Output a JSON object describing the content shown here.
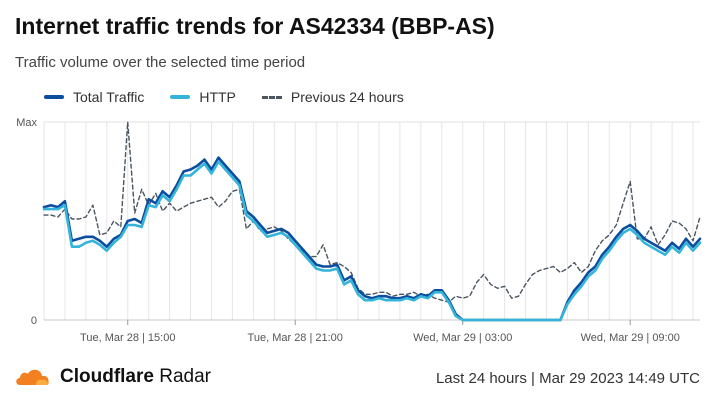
{
  "header": {
    "title": "Internet traffic trends for AS42334 (BBP-AS)",
    "subtitle": "Traffic volume over the selected time period"
  },
  "legend": {
    "items": [
      {
        "label": "Total Traffic",
        "color": "#0b4d9e",
        "style": "solid"
      },
      {
        "label": "HTTP",
        "color": "#34b4d8",
        "style": "solid"
      },
      {
        "label": "Previous 24 hours",
        "color": "#4a5560",
        "style": "dashed"
      }
    ]
  },
  "footer": {
    "brand_name": "Cloudflare",
    "brand_product": "Radar",
    "timestamp": "Last 24 hours | Mar 29 2023 14:49 UTC",
    "logo_icon": "cloudflare-cloud-icon",
    "logo_color": "#f38020"
  },
  "chart_data": {
    "type": "line",
    "title": "Internet traffic trends for AS42334 (BBP-AS)",
    "subtitle": "Traffic volume over the selected time period",
    "y_tick_labels": [
      "0",
      "Max"
    ],
    "ylim": [
      0,
      1
    ],
    "x_tick_labels": [
      "Tue, Mar 28 | 15:00",
      "Tue, Mar 28 | 21:00",
      "Wed, Mar 29 | 03:00",
      "Wed, Mar 29 | 09:00"
    ],
    "x_tick_index": [
      12,
      36,
      60,
      84
    ],
    "x_count": 95,
    "grid": true,
    "legend_position": "top-left",
    "series": [
      {
        "name": "Total Traffic",
        "color": "#0b4d9e",
        "style": "solid",
        "values": [
          0.57,
          0.58,
          0.57,
          0.6,
          0.4,
          0.41,
          0.42,
          0.42,
          0.4,
          0.37,
          0.41,
          0.43,
          0.5,
          0.51,
          0.49,
          0.61,
          0.59,
          0.65,
          0.62,
          0.68,
          0.75,
          0.76,
          0.78,
          0.81,
          0.76,
          0.82,
          0.78,
          0.74,
          0.7,
          0.55,
          0.52,
          0.48,
          0.44,
          0.45,
          0.46,
          0.44,
          0.4,
          0.36,
          0.32,
          0.28,
          0.27,
          0.27,
          0.28,
          0.2,
          0.22,
          0.15,
          0.12,
          0.11,
          0.12,
          0.12,
          0.11,
          0.11,
          0.12,
          0.11,
          0.13,
          0.12,
          0.15,
          0.15,
          0.1,
          0.03,
          0.0,
          0.0,
          0.0,
          0.0,
          0.0,
          0.0,
          0.0,
          0.0,
          0.0,
          0.0,
          0.0,
          0.0,
          0.0,
          0.0,
          0.0,
          0.09,
          0.15,
          0.19,
          0.24,
          0.27,
          0.33,
          0.37,
          0.42,
          0.46,
          0.48,
          0.45,
          0.41,
          0.39,
          0.37,
          0.35,
          0.39,
          0.36,
          0.41,
          0.37,
          0.41
        ]
      },
      {
        "name": "HTTP",
        "color": "#34b4d8",
        "style": "solid",
        "values": [
          0.56,
          0.56,
          0.56,
          0.58,
          0.37,
          0.37,
          0.39,
          0.4,
          0.38,
          0.35,
          0.39,
          0.42,
          0.48,
          0.48,
          0.47,
          0.58,
          0.57,
          0.63,
          0.6,
          0.66,
          0.73,
          0.73,
          0.76,
          0.79,
          0.74,
          0.8,
          0.76,
          0.72,
          0.68,
          0.53,
          0.5,
          0.46,
          0.42,
          0.43,
          0.44,
          0.42,
          0.38,
          0.34,
          0.3,
          0.26,
          0.25,
          0.25,
          0.26,
          0.18,
          0.2,
          0.13,
          0.1,
          0.1,
          0.11,
          0.1,
          0.1,
          0.1,
          0.11,
          0.1,
          0.12,
          0.11,
          0.14,
          0.14,
          0.09,
          0.02,
          0.0,
          0.0,
          0.0,
          0.0,
          0.0,
          0.0,
          0.0,
          0.0,
          0.0,
          0.0,
          0.0,
          0.0,
          0.0,
          0.0,
          0.0,
          0.08,
          0.13,
          0.17,
          0.22,
          0.25,
          0.31,
          0.35,
          0.4,
          0.44,
          0.46,
          0.43,
          0.39,
          0.37,
          0.35,
          0.33,
          0.37,
          0.34,
          0.39,
          0.35,
          0.39
        ]
      },
      {
        "name": "Previous 24 hours",
        "color": "#4a5560",
        "style": "dashed",
        "values": [
          0.53,
          0.53,
          0.52,
          0.56,
          0.51,
          0.51,
          0.52,
          0.58,
          0.43,
          0.44,
          0.5,
          0.47,
          1.0,
          0.54,
          0.66,
          0.58,
          0.64,
          0.55,
          0.59,
          0.55,
          0.57,
          0.59,
          0.6,
          0.61,
          0.62,
          0.57,
          0.6,
          0.65,
          0.66,
          0.46,
          0.5,
          0.45,
          0.46,
          0.47,
          0.45,
          0.41,
          0.38,
          0.35,
          0.32,
          0.32,
          0.38,
          0.28,
          0.29,
          0.27,
          0.24,
          0.16,
          0.13,
          0.13,
          0.14,
          0.14,
          0.12,
          0.13,
          0.13,
          0.14,
          0.12,
          0.13,
          0.11,
          0.1,
          0.09,
          0.12,
          0.11,
          0.12,
          0.19,
          0.23,
          0.18,
          0.16,
          0.17,
          0.11,
          0.12,
          0.18,
          0.23,
          0.25,
          0.26,
          0.27,
          0.24,
          0.26,
          0.29,
          0.24,
          0.27,
          0.35,
          0.4,
          0.43,
          0.48,
          0.59,
          0.7,
          0.41,
          0.41,
          0.47,
          0.38,
          0.43,
          0.5,
          0.49,
          0.46,
          0.4,
          0.52
        ]
      }
    ]
  }
}
